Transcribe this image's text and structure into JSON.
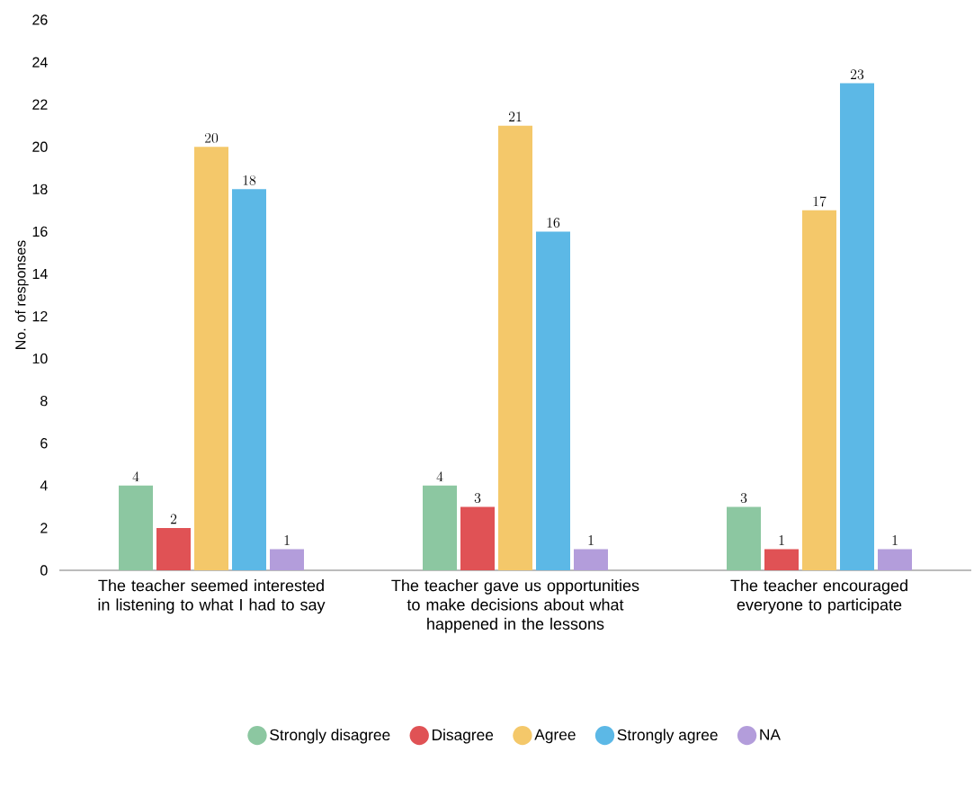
{
  "chart_data": {
    "type": "bar",
    "ylabel": "No. of responses",
    "categories": [
      "The teacher seemed interested in listening to what I had to say",
      "The teacher gave us opportunities to make decisions about what happened in the lessons",
      "The teacher encouraged everyone to participate"
    ],
    "series": [
      {
        "name": "Strongly disagree",
        "color": "#8cc7a1",
        "values": [
          4,
          4,
          3
        ]
      },
      {
        "name": "Disagree",
        "color": "#e05255",
        "values": [
          2,
          3,
          1
        ]
      },
      {
        "name": "Agree",
        "color": "#f4c86a",
        "values": [
          20,
          21,
          17
        ]
      },
      {
        "name": "Strongly agree",
        "color": "#5cb8e6",
        "values": [
          18,
          16,
          23
        ]
      },
      {
        "name": "NA",
        "color": "#b39ddb",
        "values": [
          1,
          1,
          1
        ]
      }
    ],
    "ylim": [
      0,
      26
    ],
    "yticks": [
      0,
      2,
      4,
      6,
      8,
      10,
      12,
      14,
      16,
      18,
      20,
      22,
      24,
      26
    ],
    "data_labels": true,
    "legend": "bottom",
    "grid": false
  }
}
